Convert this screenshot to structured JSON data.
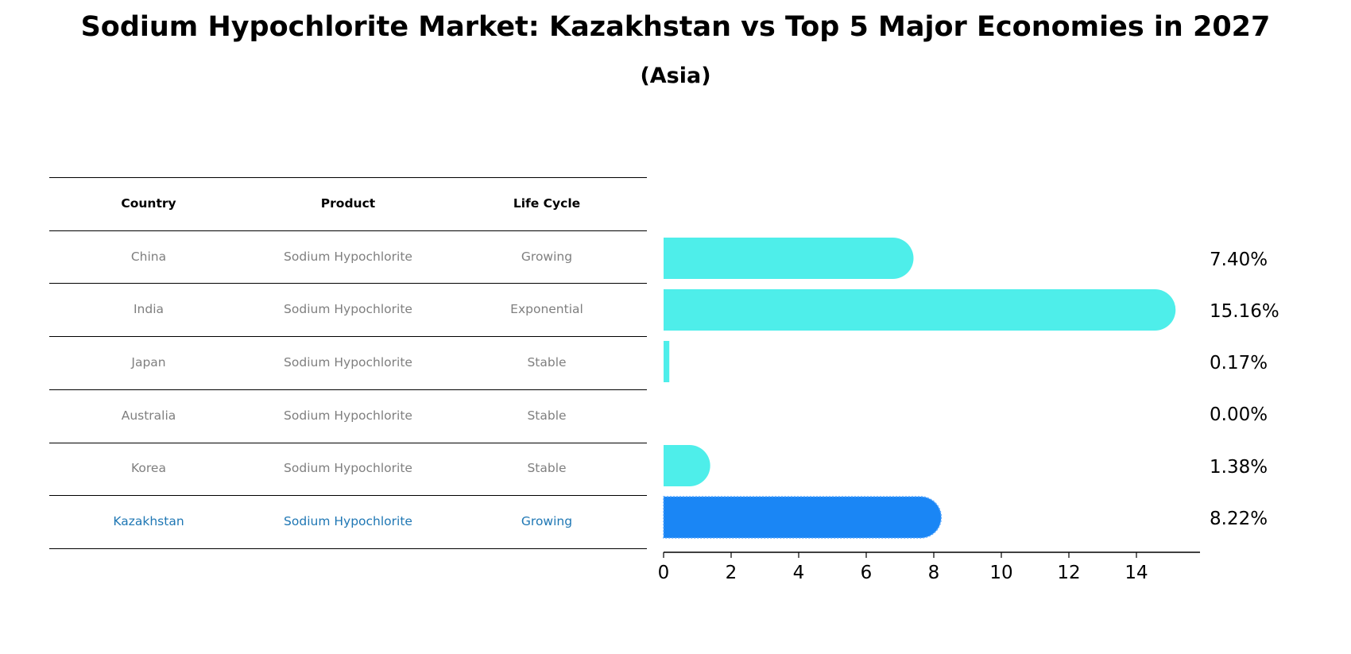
{
  "title": "Sodium Hypochlorite Market: Kazakhstan vs Top 5 Major Economies in 2027",
  "subtitle": "(Asia)",
  "table": {
    "headers": [
      "Country",
      "Product",
      "Life Cycle"
    ],
    "rows": [
      {
        "country": "China",
        "product": "Sodium Hypochlorite",
        "life_cycle": "Growing",
        "highlight": false
      },
      {
        "country": "India",
        "product": "Sodium Hypochlorite",
        "life_cycle": "Exponential",
        "highlight": false
      },
      {
        "country": "Japan",
        "product": "Sodium Hypochlorite",
        "life_cycle": "Stable",
        "highlight": false
      },
      {
        "country": "Australia",
        "product": "Sodium Hypochlorite",
        "life_cycle": "Stable",
        "highlight": false
      },
      {
        "country": "Korea",
        "product": "Sodium Hypochlorite",
        "life_cycle": "Stable",
        "highlight": false
      },
      {
        "country": "Kazakhstan",
        "product": "Sodium Hypochlorite",
        "life_cycle": "Growing",
        "highlight": true
      }
    ]
  },
  "chart_data": {
    "type": "bar",
    "orientation": "horizontal",
    "categories": [
      "China",
      "India",
      "Japan",
      "Australia",
      "Korea",
      "Kazakhstan"
    ],
    "values": [
      7.4,
      15.16,
      0.17,
      0.0,
      1.38,
      8.22
    ],
    "value_labels": [
      "7.40%",
      "15.16%",
      "0.17%",
      "0.00%",
      "1.38%",
      "8.22%"
    ],
    "xlim": [
      0,
      16
    ],
    "xticks": [
      0,
      2,
      4,
      6,
      8,
      10,
      12,
      14
    ],
    "grid": false,
    "colors": {
      "default": "#4eeeea",
      "highlight": "#1a86f5",
      "highlight_edge": "#5aa8ff"
    }
  }
}
